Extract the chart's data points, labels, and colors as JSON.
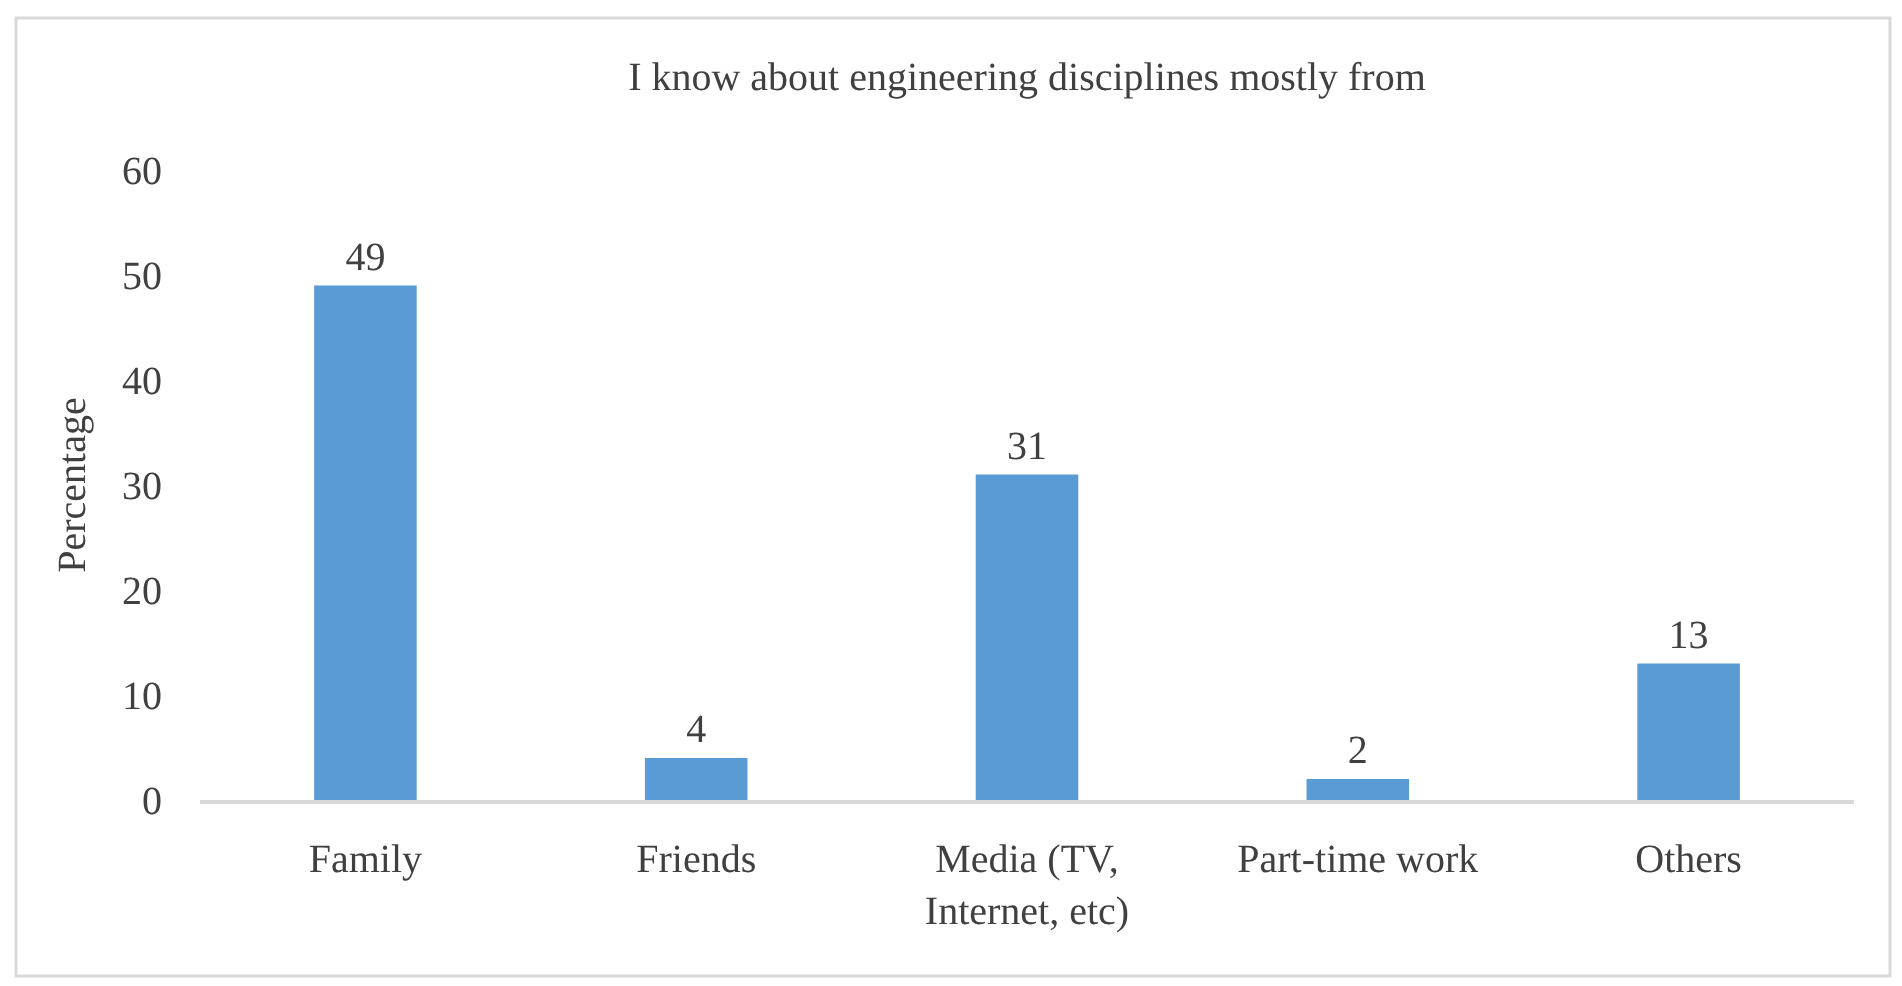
{
  "chart_data": {
    "type": "bar",
    "title": "I know about engineering disciplines mostly from",
    "ylabel": "Percentage",
    "categories": [
      "Family",
      "Friends",
      "Media (TV,\nInternet, etc)",
      "Part-time work",
      "Others"
    ],
    "values": [
      49,
      4,
      31,
      2,
      13
    ],
    "color": "#5b9bd5",
    "ylim": [
      0,
      60
    ],
    "yticks": [
      0,
      10,
      20,
      30,
      40,
      50,
      60
    ],
    "data_labels": true,
    "grid": false
  }
}
